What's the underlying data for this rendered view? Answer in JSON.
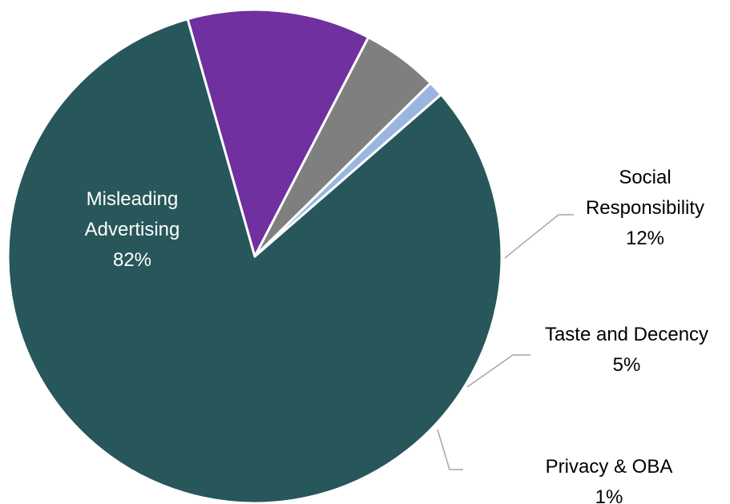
{
  "chart_data": {
    "type": "pie",
    "title": "",
    "slices": [
      {
        "name": "Misleading Advertising",
        "label_lines": [
          "Misleading",
          "Advertising"
        ],
        "value": 82,
        "value_label": "82%",
        "color": "#27575a"
      },
      {
        "name": "Social Responsibility",
        "label_lines": [
          "Social",
          "Responsibility"
        ],
        "value": 12,
        "value_label": "12%",
        "color": "#7030a0"
      },
      {
        "name": "Taste and Decency",
        "label_lines": [
          "Taste and Decency"
        ],
        "value": 5,
        "value_label": "5%",
        "color": "#7f7f7f"
      },
      {
        "name": "Privacy & OBA",
        "label_lines": [
          "Privacy & OBA"
        ],
        "value": 1,
        "value_label": "1%",
        "color": "#9ab6e0"
      }
    ],
    "start_angle_deg": -41,
    "direction": "clockwise",
    "legend": "none"
  }
}
